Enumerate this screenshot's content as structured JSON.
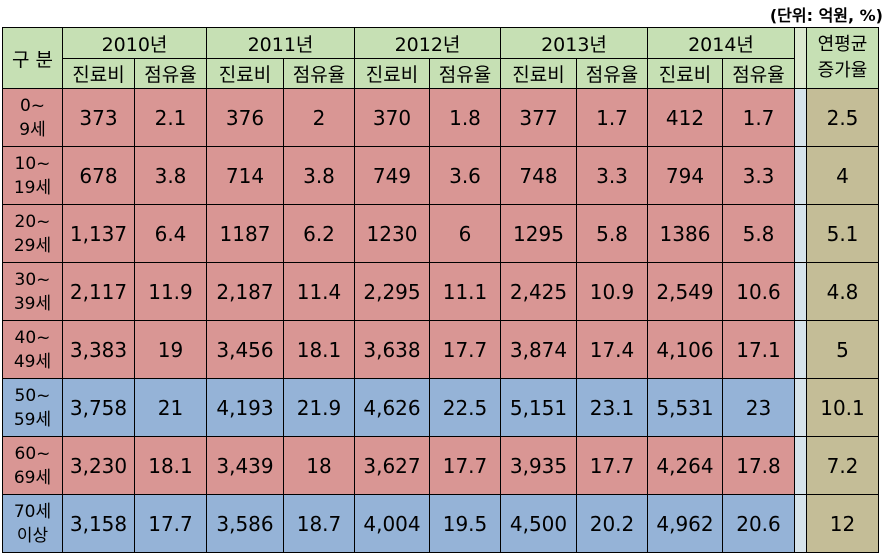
{
  "unit_note": "(단위: 억원, %)",
  "header": {
    "category": "구 분",
    "years": [
      "2010년",
      "2011년",
      "2012년",
      "2013년",
      "2014년"
    ],
    "cost_label": "진료비",
    "share_label": "점유율",
    "avg_label_1": "연평균",
    "avg_label_2": "증가율"
  },
  "colors": {
    "red_rows": "#d99694",
    "blue_rows": "#95b3d7",
    "avg_col": "#c4bd97",
    "header": "#c6e0b4"
  },
  "rows": [
    {
      "l1": "0~",
      "l2": "9세",
      "color": "red",
      "v": [
        "373",
        "2.1",
        "376",
        "2",
        "370",
        "1.8",
        "377",
        "1.7",
        "412",
        "1.7"
      ],
      "avg": "2.5"
    },
    {
      "l1": "10~",
      "l2": "19세",
      "color": "red",
      "v": [
        "678",
        "3.8",
        "714",
        "3.8",
        "749",
        "3.6",
        "748",
        "3.3",
        "794",
        "3.3"
      ],
      "avg": "4"
    },
    {
      "l1": "20~",
      "l2": "29세",
      "color": "red",
      "v": [
        "1,137",
        "6.4",
        "1187",
        "6.2",
        "1230",
        "6",
        "1295",
        "5.8",
        "1386",
        "5.8"
      ],
      "avg": "5.1"
    },
    {
      "l1": "30~",
      "l2": "39세",
      "color": "red",
      "v": [
        "2,117",
        "11.9",
        "2,187",
        "11.4",
        "2,295",
        "11.1",
        "2,425",
        "10.9",
        "2,549",
        "10.6"
      ],
      "avg": "4.8"
    },
    {
      "l1": "40~",
      "l2": "49세",
      "color": "red",
      "v": [
        "3,383",
        "19",
        "3,456",
        "18.1",
        "3,638",
        "17.7",
        "3,874",
        "17.4",
        "4,106",
        "17.1"
      ],
      "avg": "5"
    },
    {
      "l1": "50~",
      "l2": "59세",
      "color": "blue",
      "v": [
        "3,758",
        "21",
        "4,193",
        "21.9",
        "4,626",
        "22.5",
        "5,151",
        "23.1",
        "5,531",
        "23"
      ],
      "avg": "10.1"
    },
    {
      "l1": "60~",
      "l2": "69세",
      "color": "red",
      "v": [
        "3,230",
        "18.1",
        "3,439",
        "18",
        "3,627",
        "17.7",
        "3,935",
        "17.7",
        "4,264",
        "17.8"
      ],
      "avg": "7.2"
    },
    {
      "l1": "70세",
      "l2": "이상",
      "color": "blue",
      "v": [
        "3,158",
        "17.7",
        "3,586",
        "18.7",
        "4,004",
        "19.5",
        "4,500",
        "20.2",
        "4,962",
        "20.6"
      ],
      "avg": "12"
    }
  ]
}
